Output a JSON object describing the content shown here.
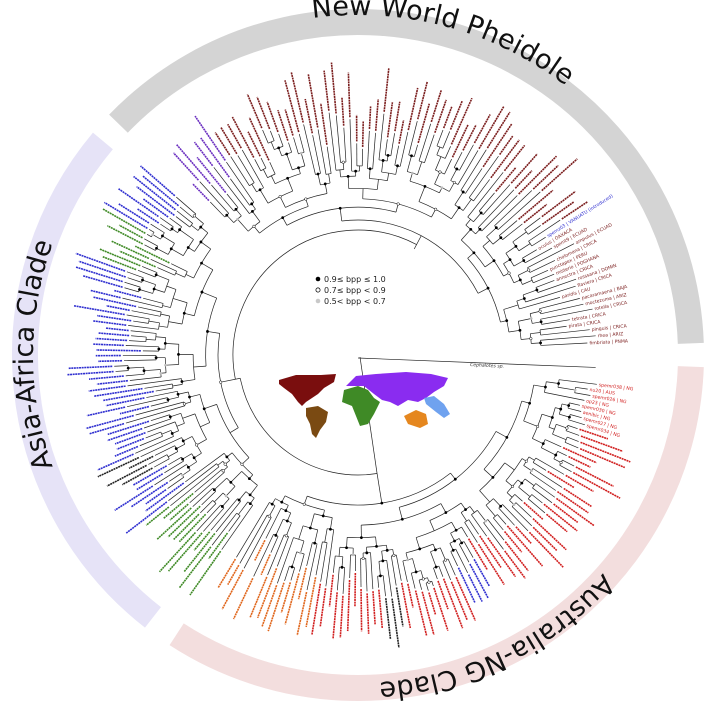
{
  "clades": [
    {
      "name": "New World Pheidole",
      "band_color": "#d4d4d4",
      "tip_color": "#7b1e1e"
    },
    {
      "name": "Asia-Africa Clade",
      "band_color": "#e6e3f7",
      "tip_color": "#2f2fd0"
    },
    {
      "name": "Australia-NG Clade",
      "band_color": "#f3dede",
      "tip_color": "#d11f1f"
    }
  ],
  "legend": [
    {
      "label": "0.9≤ bpp ≤ 1.0",
      "marker": "filled-black-circle"
    },
    {
      "label": "0.7≤ bpp < 0.9",
      "marker": "open-circle"
    },
    {
      "label": "0.5< bpp < 0.7",
      "marker": "filled-grey-circle"
    }
  ],
  "region_colors": {
    "north_america": "#7a0e0e",
    "south_america": "#7a4a12",
    "africa": "#3f8a26",
    "eurasia": "#8a2cf0",
    "australia": "#e5871f",
    "new_guinea_pacific": "#6fa2ef"
  },
  "tip_colors": {
    "new_world": "#7b1e1e",
    "asia": "#2f2fd0",
    "africa": "#3f8a26",
    "australia_ng": "#d11f1f",
    "australia": "#e0661c",
    "other": "#222222",
    "introduced": "#2f2fd0"
  },
  "outgroup": "Cephalotes sp.",
  "labeled_tips": {
    "australia_ng": [
      "spemr038 | NG",
      "nu20 | AUS",
      "spemr026 | NG",
      "op23 | NG",
      "spemr030 | NG",
      "aenibic | NG",
      "spemr027 | NG",
      "spemr034 | NG"
    ],
    "new_world": [
      "fimbriata | PNMA",
      "rhea | ARIZ",
      "pinguis | CRICA",
      "pirata | CRICA",
      "tetrata | CRICA",
      "rotella | CRICA",
      "moctezuma | ARIZ",
      "pacaramaena | BAJA",
      "paridis | CAU",
      "flaviera | CRICA",
      "rosssana | DOMIN",
      "annectra | CRICA",
      "misterio | POGHANA",
      "punctapex | PERU",
      "cholomana | CRICA",
      "ampulus | ECUAD",
      "spemt9 | ECUAD",
      "oculus | OAXACA"
    ],
    "introduced": [
      "spemz03 | VANUATU (introduced)"
    ]
  }
}
